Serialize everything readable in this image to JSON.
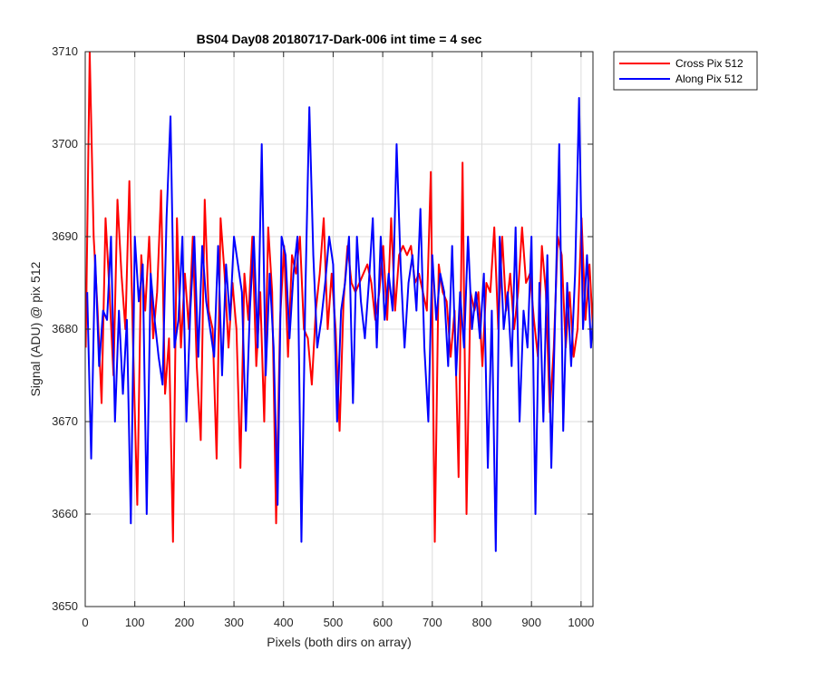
{
  "chart_data": {
    "type": "line",
    "title": "BS04 Day08 20180717-Dark-006 int time = 4 sec",
    "xlabel": "Pixels (both dirs on array)",
    "ylabel": "Signal (ADU) @ pix 512",
    "xlim": [
      0,
      1024
    ],
    "ylim": [
      3650,
      3710
    ],
    "xticks": [
      0,
      100,
      200,
      300,
      400,
      500,
      600,
      700,
      800,
      900,
      1000
    ],
    "yticks": [
      3650,
      3660,
      3670,
      3680,
      3690,
      3700,
      3710
    ],
    "grid": true,
    "legend_position": "outside-top-right",
    "series": [
      {
        "name": "Cross Pix 512",
        "color": "#ff0000",
        "x_start": 1,
        "x_step": 8,
        "values": [
          3678,
          3710,
          3690,
          3682,
          3672,
          3692,
          3684,
          3675,
          3694,
          3686,
          3680,
          3696,
          3677,
          3661,
          3688,
          3682,
          3690,
          3679,
          3684,
          3695,
          3673,
          3679,
          3657,
          3692,
          3678,
          3686,
          3680,
          3690,
          3676,
          3668,
          3694,
          3682,
          3680,
          3666,
          3692,
          3686,
          3678,
          3685,
          3680,
          3665,
          3686,
          3681,
          3690,
          3676,
          3684,
          3670,
          3691,
          3684,
          3659,
          3681,
          3689,
          3677,
          3688,
          3686,
          3690,
          3680,
          3679,
          3674,
          3682,
          3686,
          3692,
          3680,
          3686,
          3680,
          3669,
          3683,
          3689,
          3685,
          3684,
          3685,
          3686,
          3687,
          3685,
          3681,
          3684,
          3689,
          3681,
          3692,
          3682,
          3688,
          3689,
          3688,
          3689,
          3685,
          3686,
          3684,
          3682,
          3697,
          3657,
          3687,
          3684,
          3683,
          3677,
          3682,
          3664,
          3698,
          3660,
          3684,
          3682,
          3684,
          3676,
          3685,
          3684,
          3691,
          3680,
          3690,
          3682,
          3686,
          3680,
          3684,
          3691,
          3685,
          3686,
          3681,
          3677,
          3689,
          3684,
          3671,
          3678,
          3690,
          3688,
          3678,
          3684,
          3677,
          3680,
          3692,
          3681,
          3687,
          3679,
          3685
        ]
      },
      {
        "name": "Along Pix 512",
        "color": "#0000ff",
        "x_start": 4,
        "x_step": 8,
        "values": [
          3684,
          3666,
          3688,
          3676,
          3682,
          3681,
          3690,
          3670,
          3682,
          3673,
          3681,
          3659,
          3690,
          3683,
          3687,
          3660,
          3686,
          3681,
          3677,
          3674,
          3692,
          3703,
          3678,
          3681,
          3690,
          3670,
          3682,
          3690,
          3677,
          3689,
          3683,
          3680,
          3677,
          3689,
          3675,
          3687,
          3681,
          3690,
          3687,
          3684,
          3669,
          3682,
          3690,
          3678,
          3700,
          3675,
          3686,
          3678,
          3661,
          3690,
          3688,
          3679,
          3686,
          3690,
          3657,
          3684,
          3704,
          3688,
          3678,
          3681,
          3685,
          3690,
          3687,
          3670,
          3682,
          3685,
          3690,
          3672,
          3690,
          3683,
          3679,
          3685,
          3692,
          3678,
          3690,
          3681,
          3686,
          3682,
          3700,
          3687,
          3678,
          3685,
          3688,
          3682,
          3693,
          3678,
          3670,
          3688,
          3681,
          3686,
          3684,
          3676,
          3689,
          3675,
          3684,
          3678,
          3690,
          3680,
          3684,
          3679,
          3686,
          3665,
          3682,
          3656,
          3690,
          3680,
          3684,
          3676,
          3691,
          3670,
          3682,
          3678,
          3690,
          3660,
          3685,
          3670,
          3688,
          3665,
          3682,
          3700,
          3669,
          3685,
          3676,
          3686,
          3705,
          3680,
          3688,
          3678,
          3684,
          3691
        ]
      }
    ]
  }
}
